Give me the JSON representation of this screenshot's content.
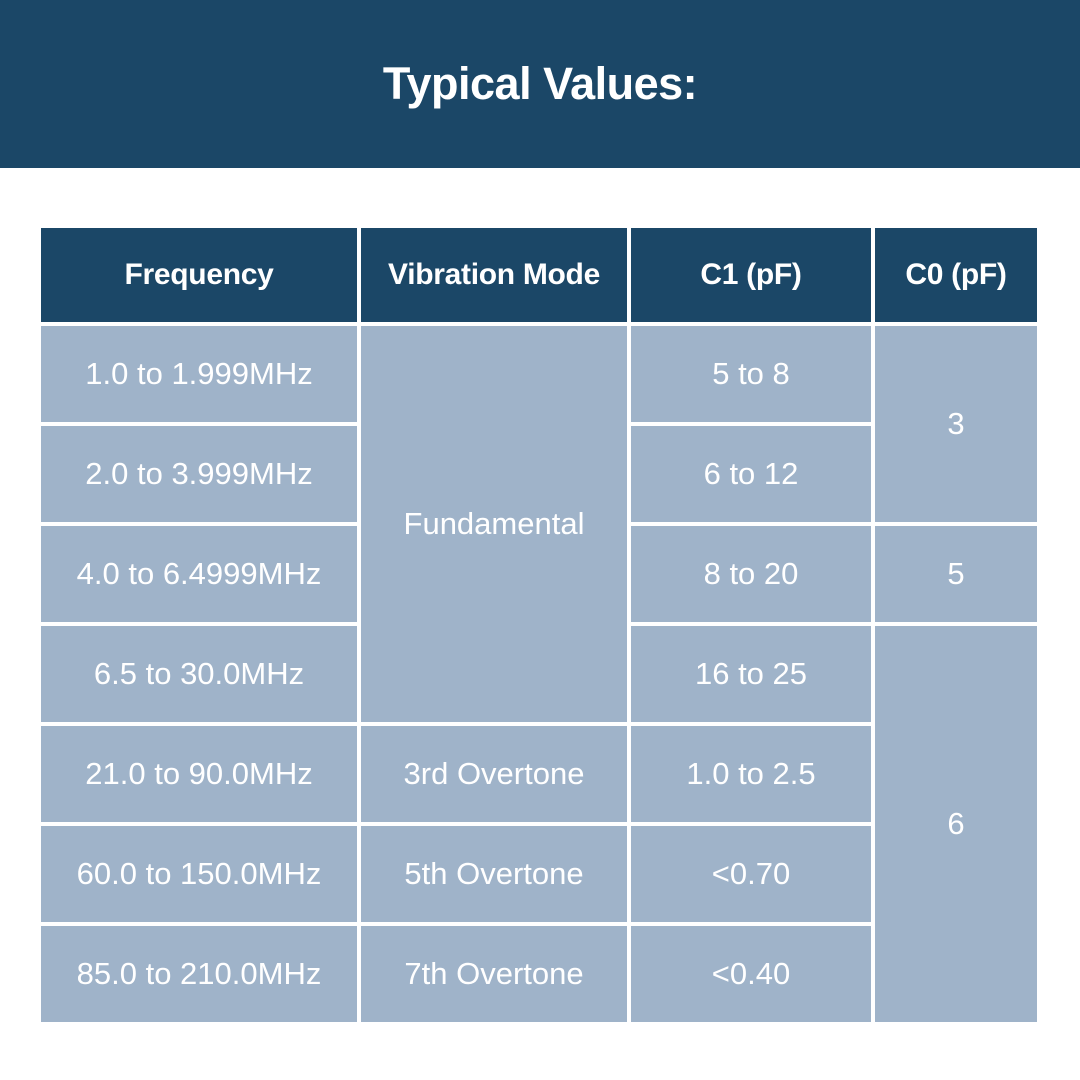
{
  "title": "Typical Values:",
  "colors": {
    "banner": "#1B4767",
    "header_bg": "#1B4767",
    "cell_bg": "#9FB3C9",
    "text_on_dark": "#FFFFFF"
  },
  "table": {
    "headers": {
      "frequency": "Frequency",
      "vibration_mode": "Vibration Mode",
      "c1": "C1 (pF)",
      "c0": "C0 (pF)"
    },
    "rows": [
      {
        "frequency": "1.0 to 1.999MHz",
        "vibration_mode": "Fundamental",
        "c1": "5 to 8",
        "c0": "3"
      },
      {
        "frequency": "2.0 to 3.999MHz",
        "c1": "6 to 12"
      },
      {
        "frequency": "4.0 to 6.4999MHz",
        "c1": "8 to 20",
        "c0": "5"
      },
      {
        "frequency": "6.5 to 30.0MHz",
        "c1": "16 to 25",
        "c0": "6"
      },
      {
        "frequency": "21.0 to 90.0MHz",
        "vibration_mode": "3rd Overtone",
        "c1": "1.0 to 2.5"
      },
      {
        "frequency": "60.0 to 150.0MHz",
        "vibration_mode": "5th Overtone",
        "c1": "<0.70"
      },
      {
        "frequency": "85.0 to 210.0MHz",
        "vibration_mode": "7th Overtone",
        "c1": "<0.40"
      }
    ]
  }
}
